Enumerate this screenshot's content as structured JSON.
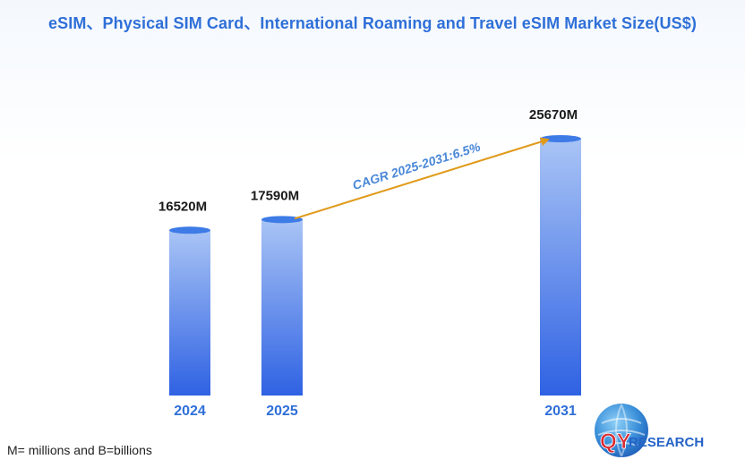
{
  "title": "eSIM、Physical SIM Card、International Roaming and Travel eSIM Market Size(US$)",
  "footnote": "M= millions and B=billions",
  "logo": {
    "text_q": "QY",
    "text_rest": "RESEARCH"
  },
  "colors": {
    "title": "#2f6fd8",
    "bar_top": "#a9c4f5",
    "bar_bottom": "#2f62e3",
    "bar_cap": "#3d7be6",
    "cagr_line": "#e09a1a",
    "cagr_text": "#4a88d8",
    "category_text": "#2f6fd8"
  },
  "chart_data": {
    "type": "bar",
    "title": "eSIM、Physical SIM Card、International Roaming and Travel eSIM Market Size(US$)",
    "categories": [
      "2024",
      "2025",
      "2031"
    ],
    "values": [
      16520,
      17590,
      25670
    ],
    "value_labels": [
      "16520M",
      "17590M",
      "25670M"
    ],
    "unit": "M",
    "ylim": [
      0,
      30000
    ],
    "grid": false,
    "legend": "none",
    "annotations": [
      {
        "text": "CAGR 2025-2031:6.5%",
        "from": "2025",
        "to": "2031"
      }
    ]
  }
}
